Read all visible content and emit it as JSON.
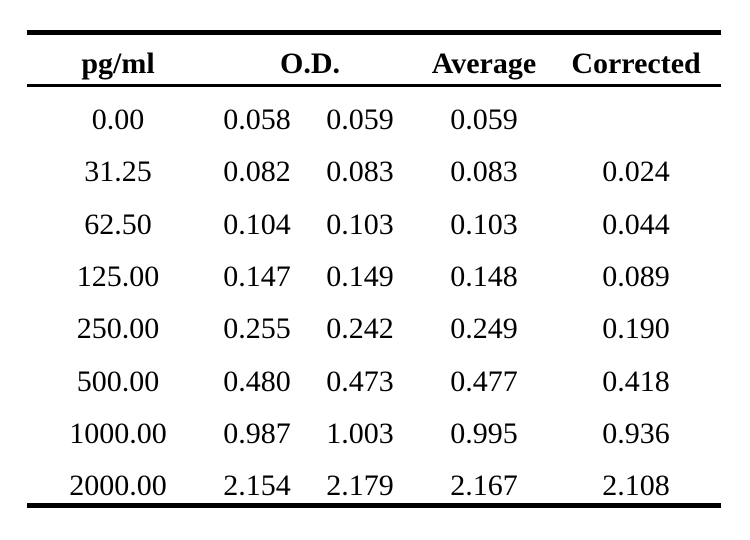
{
  "table": {
    "headers": {
      "concentration": "pg/ml",
      "od": "O.D.",
      "average": "Average",
      "corrected": "Corrected"
    },
    "rows": [
      {
        "concentration": "0.00",
        "od1": "0.058",
        "od2": "0.059",
        "average": "0.059",
        "corrected": ""
      },
      {
        "concentration": "31.25",
        "od1": "0.082",
        "od2": "0.083",
        "average": "0.083",
        "corrected": "0.024"
      },
      {
        "concentration": "62.50",
        "od1": "0.104",
        "od2": "0.103",
        "average": "0.103",
        "corrected": "0.044"
      },
      {
        "concentration": "125.00",
        "od1": "0.147",
        "od2": "0.149",
        "average": "0.148",
        "corrected": "0.089"
      },
      {
        "concentration": "250.00",
        "od1": "0.255",
        "od2": "0.242",
        "average": "0.249",
        "corrected": "0.190"
      },
      {
        "concentration": "500.00",
        "od1": "0.480",
        "od2": "0.473",
        "average": "0.477",
        "corrected": "0.418"
      },
      {
        "concentration": "1000.00",
        "od1": "0.987",
        "od2": "1.003",
        "average": "0.995",
        "corrected": "0.936"
      },
      {
        "concentration": "2000.00",
        "od1": "2.154",
        "od2": "2.179",
        "average": "2.167",
        "corrected": "2.108"
      }
    ]
  }
}
